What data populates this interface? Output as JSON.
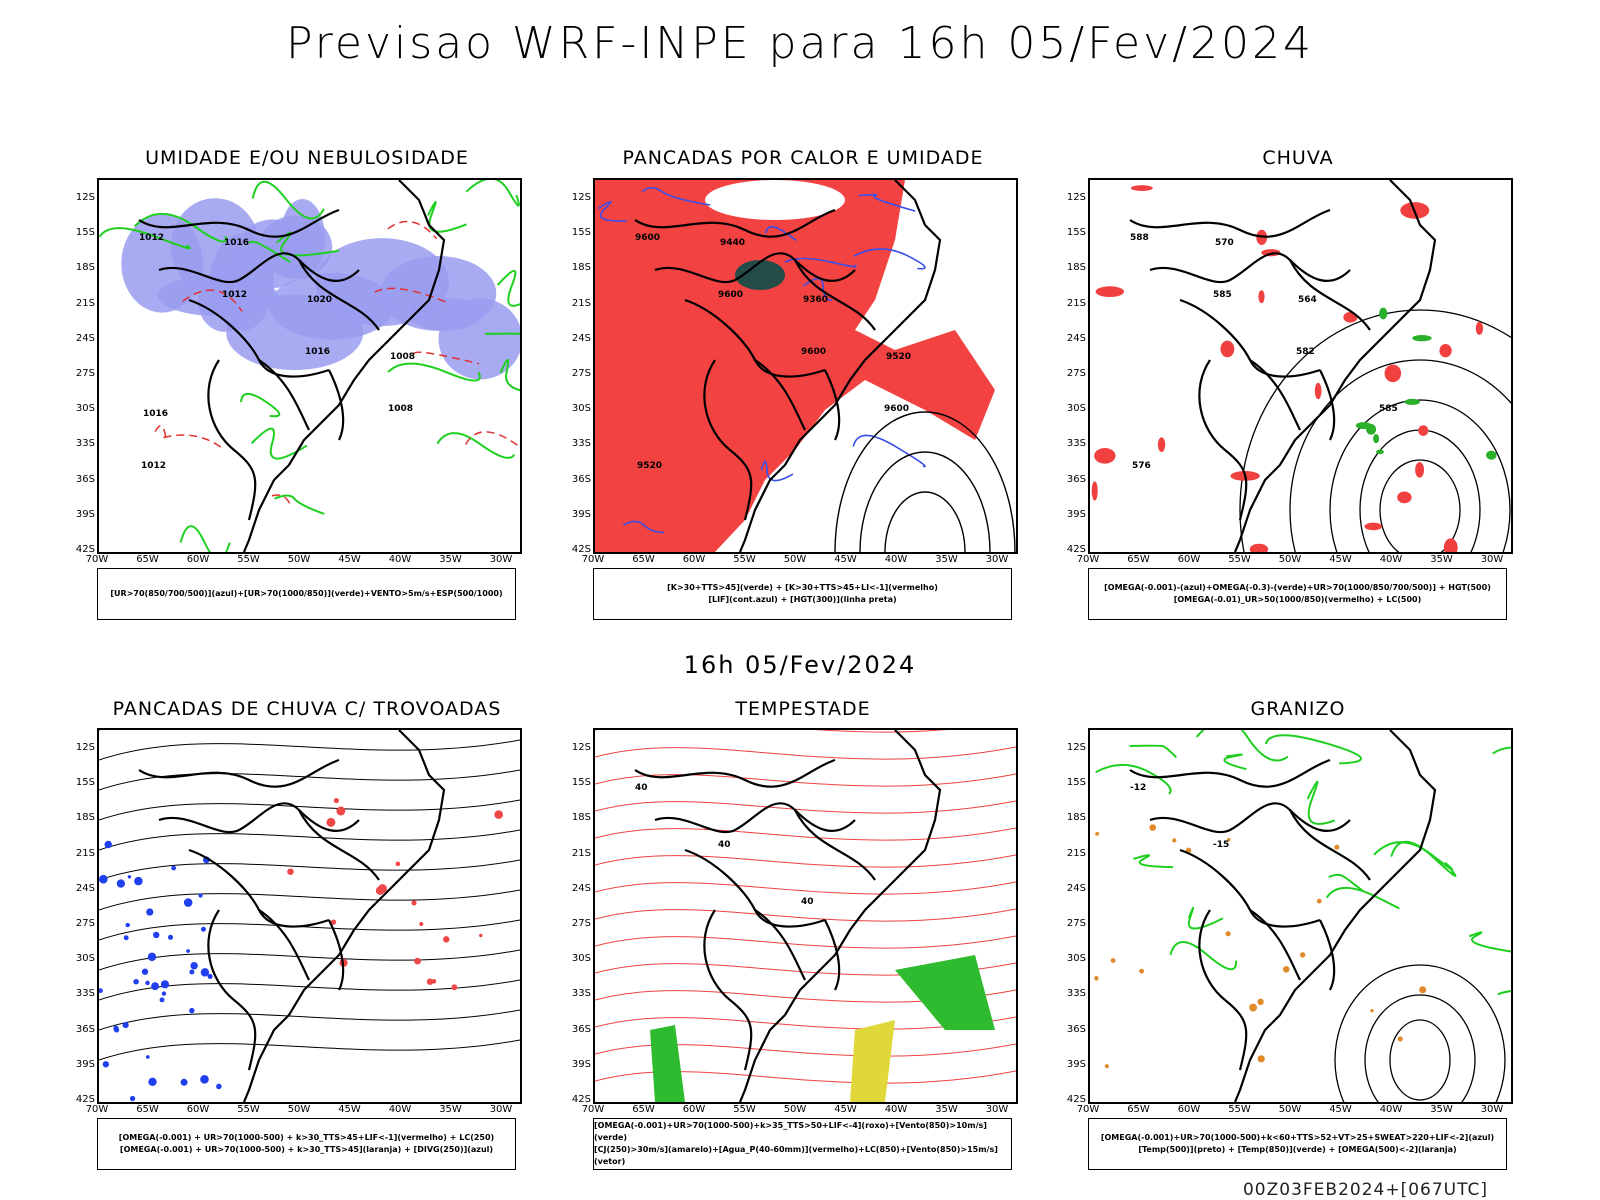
{
  "title": "Previsao WRF-INPE  para 16h 05/Fev/2024",
  "mid_time": "16h 05/Fev/2024",
  "footer": "00Z03FEB2024+[067UTC]",
  "lat_labels": [
    "12S",
    "15S",
    "18S",
    "21S",
    "24S",
    "27S",
    "30S",
    "33S",
    "36S",
    "39S",
    "42S"
  ],
  "lon_labels": [
    "70W",
    "65W",
    "60W",
    "55W",
    "50W",
    "45W",
    "40W",
    "35W",
    "30W"
  ],
  "panels": [
    {
      "title": "UMIDADE E/OU NEBULOSIDADE",
      "legend": [
        "[UR>70(850/700/500)](azul)+[UR>70(1000/850)](verde)+VENTO>5m/s+ESP(500/1000)"
      ],
      "contour_labels": [
        "1012",
        "1012",
        "1016",
        "1008",
        "1012",
        "1016",
        "1020",
        "1008",
        "1016"
      ]
    },
    {
      "title": "PANCADAS POR CALOR E UMIDADE",
      "legend": [
        "[K>30+TTS>45](verde) + [K>30+TTS>45+LI<-1](vermelho)",
        "[LIF](cont.azul) + [HGT(300)](linha preta)"
      ],
      "contour_labels": [
        "9600",
        "9600",
        "9600",
        "9600",
        "9520",
        "9440",
        "9360",
        "9520"
      ]
    },
    {
      "title": "CHUVA",
      "legend": [
        "[OMEGA(-0.001)-(azul)+OMEGA(-0.3)-(verde)+UR>70(1000/850/700/500)] + HGT(500)",
        "[OMEGA(-0.01)_UR>50(1000/850)(vermelho) + LC(500)"
      ],
      "contour_labels": [
        "588",
        "585",
        "582",
        "585",
        "576",
        "570",
        "564"
      ]
    },
    {
      "title": "PANCADAS DE CHUVA C/ TROVOADAS",
      "legend": [
        "[OMEGA(-0.001) + UR>70(1000-500) + k>30_TTS>45+LIF<-1](vermelho) + LC(250)",
        "[OMEGA(-0.001) + UR>70(1000-500) + k>30_TTS>45](laranja) + [DIVG(250)](azul)"
      ],
      "contour_labels": []
    },
    {
      "title": "TEMPESTADE",
      "legend": [
        "[OMEGA(-0.001)+UR>70(1000-500)+k>35_TTS>50+LIF<-4](roxo)+[Vento(850)>10m/s](verde)",
        "[CJ(250)>30m/s](amarelo)+[Agua_P(40-60mm)](vermelho)+LC(850)+[Vento(850)>15m/s](vetor)"
      ],
      "contour_labels": [
        "40",
        "40",
        "40"
      ]
    },
    {
      "title": "GRANIZO",
      "legend": [
        "[OMEGA(-0.001)+UR>70(1000-500)+k<60+TTS>52+VT>25+SWEAT>220+LIF<-2](azul)",
        "[Temp(500)](preto) + [Temp(850)](verde) + [OMEGA(500)<-2](laranja)"
      ],
      "contour_labels": [
        "-12",
        "-15"
      ]
    }
  ]
}
